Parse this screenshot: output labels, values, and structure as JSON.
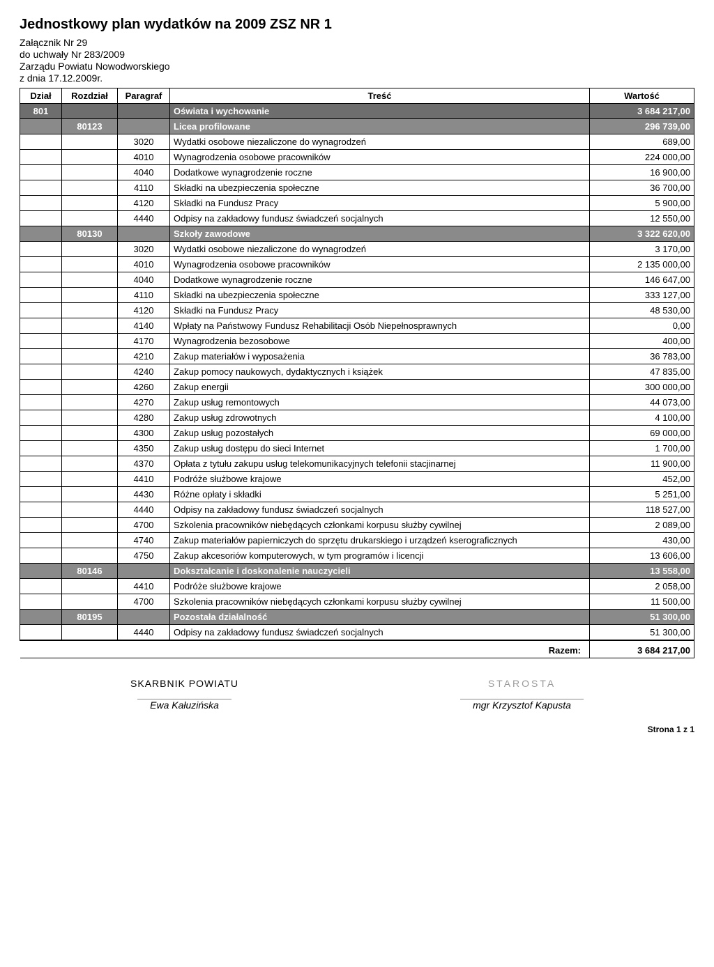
{
  "header": {
    "title": "Jednostkowy plan wydatków na 2009  ZSZ NR 1",
    "lines": [
      "Załącznik Nr 29",
      "do uchwały Nr 283/2009",
      "Zarządu Powiatu Nowodworskiego",
      "z dnia  17.12.2009r."
    ]
  },
  "columns": {
    "dzial": "Dział",
    "rozdzial": "Rozdział",
    "paragraf": "Paragraf",
    "tresc": "Treść",
    "wartosc": "Wartość"
  },
  "rows": [
    {
      "type": "dzial",
      "dzial": "801",
      "tresc": "Oświata i wychowanie",
      "wartosc": "3 684 217,00"
    },
    {
      "type": "section",
      "rozdzial": "80123",
      "tresc": "Licea profilowane",
      "wartosc": "296 739,00"
    },
    {
      "type": "item",
      "paragraf": "3020",
      "tresc": "Wydatki osobowe niezaliczone do wynagrodzeń",
      "wartosc": "689,00"
    },
    {
      "type": "item",
      "paragraf": "4010",
      "tresc": "Wynagrodzenia osobowe pracowników",
      "wartosc": "224 000,00"
    },
    {
      "type": "item",
      "paragraf": "4040",
      "tresc": "Dodatkowe wynagrodzenie roczne",
      "wartosc": "16 900,00"
    },
    {
      "type": "item",
      "paragraf": "4110",
      "tresc": "Składki na ubezpieczenia społeczne",
      "wartosc": "36 700,00"
    },
    {
      "type": "item",
      "paragraf": "4120",
      "tresc": "Składki na Fundusz Pracy",
      "wartosc": "5 900,00"
    },
    {
      "type": "item",
      "paragraf": "4440",
      "tresc": "Odpisy na zakładowy fundusz świadczeń socjalnych",
      "wartosc": "12 550,00"
    },
    {
      "type": "section",
      "rozdzial": "80130",
      "tresc": "Szkoły zawodowe",
      "wartosc": "3 322 620,00"
    },
    {
      "type": "item",
      "paragraf": "3020",
      "tresc": "Wydatki osobowe niezaliczone do wynagrodzeń",
      "wartosc": "3 170,00"
    },
    {
      "type": "item",
      "paragraf": "4010",
      "tresc": "Wynagrodzenia osobowe pracowników",
      "wartosc": "2 135 000,00"
    },
    {
      "type": "item",
      "paragraf": "4040",
      "tresc": "Dodatkowe wynagrodzenie roczne",
      "wartosc": "146 647,00"
    },
    {
      "type": "item",
      "paragraf": "4110",
      "tresc": "Składki na ubezpieczenia społeczne",
      "wartosc": "333 127,00"
    },
    {
      "type": "item",
      "paragraf": "4120",
      "tresc": "Składki na Fundusz Pracy",
      "wartosc": "48 530,00"
    },
    {
      "type": "item",
      "paragraf": "4140",
      "tresc": "Wpłaty na Państwowy Fundusz Rehabilitacji Osób Niepełnosprawnych",
      "wartosc": "0,00"
    },
    {
      "type": "item",
      "paragraf": "4170",
      "tresc": "Wynagrodzenia bezosobowe",
      "wartosc": "400,00"
    },
    {
      "type": "item",
      "paragraf": "4210",
      "tresc": "Zakup materiałów i wyposażenia",
      "wartosc": "36 783,00"
    },
    {
      "type": "item",
      "paragraf": "4240",
      "tresc": "Zakup pomocy naukowych, dydaktycznych i książek",
      "wartosc": "47 835,00"
    },
    {
      "type": "item",
      "paragraf": "4260",
      "tresc": "Zakup energii",
      "wartosc": "300 000,00"
    },
    {
      "type": "item",
      "paragraf": "4270",
      "tresc": "Zakup usług remontowych",
      "wartosc": "44 073,00"
    },
    {
      "type": "item",
      "paragraf": "4280",
      "tresc": "Zakup usług zdrowotnych",
      "wartosc": "4 100,00"
    },
    {
      "type": "item",
      "paragraf": "4300",
      "tresc": "Zakup usług pozostałych",
      "wartosc": "69 000,00"
    },
    {
      "type": "item",
      "paragraf": "4350",
      "tresc": "Zakup usług dostępu do sieci Internet",
      "wartosc": "1 700,00"
    },
    {
      "type": "item",
      "paragraf": "4370",
      "tresc": "Opłata z tytułu zakupu usług telekomunikacyjnych telefonii stacjinarnej",
      "wartosc": "11 900,00"
    },
    {
      "type": "item",
      "paragraf": "4410",
      "tresc": "Podróże służbowe krajowe",
      "wartosc": "452,00"
    },
    {
      "type": "item",
      "paragraf": "4430",
      "tresc": "Różne opłaty i składki",
      "wartosc": "5 251,00"
    },
    {
      "type": "item",
      "paragraf": "4440",
      "tresc": "Odpisy na zakładowy fundusz świadczeń socjalnych",
      "wartosc": "118 527,00"
    },
    {
      "type": "item",
      "paragraf": "4700",
      "tresc": "Szkolenia pracowników niebędących członkami korpusu służby cywilnej",
      "wartosc": "2 089,00"
    },
    {
      "type": "item",
      "paragraf": "4740",
      "tresc": "Zakup materiałów papierniczych do sprzętu drukarskiego i urządzeń kserograficznych",
      "wartosc": "430,00"
    },
    {
      "type": "item",
      "paragraf": "4750",
      "tresc": "Zakup akcesoriów komputerowych, w tym programów i licencji",
      "wartosc": "13 606,00"
    },
    {
      "type": "section",
      "rozdzial": "80146",
      "tresc": "Dokształcanie i doskonalenie nauczycieli",
      "wartosc": "13 558,00"
    },
    {
      "type": "item",
      "paragraf": "4410",
      "tresc": "Podróże służbowe krajowe",
      "wartosc": "2 058,00"
    },
    {
      "type": "item",
      "paragraf": "4700",
      "tresc": "Szkolenia pracowników niebędących członkami korpusu służby cywilnej",
      "wartosc": "11 500,00"
    },
    {
      "type": "section",
      "rozdzial": "80195",
      "tresc": "Pozostała działalność",
      "wartosc": "51 300,00"
    },
    {
      "type": "item",
      "paragraf": "4440",
      "tresc": "Odpisy na zakładowy fundusz świadczeń socjalnych",
      "wartosc": "51 300,00"
    }
  ],
  "total": {
    "label": "Razem:",
    "value": "3 684 217,00"
  },
  "signatures": {
    "left": {
      "title": "SKARBNIK POWIATU",
      "name": "Ewa Kałuzińska"
    },
    "right": {
      "title": "STAROSTA",
      "name": "mgr Krzysztof Kapusta"
    }
  },
  "footer": "Strona 1 z 1",
  "style": {
    "section_bg": "#8a8a8a",
    "dzial_bg": "#6e6e6e",
    "text_color": "#000000",
    "font_family": "Arial",
    "title_fontsize": 20,
    "body_fontsize": 13
  }
}
